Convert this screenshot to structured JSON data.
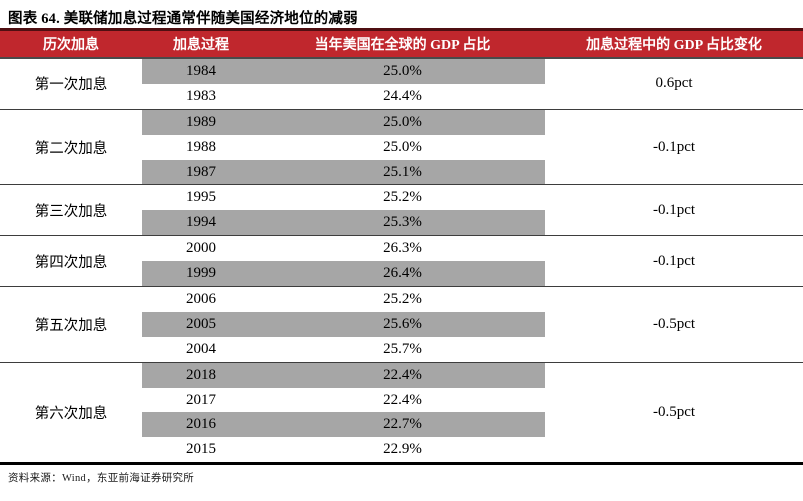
{
  "figure": {
    "title": "图表 64. 美联储加息过程通常伴随美国经济地位的减弱",
    "source_note": "资料来源：Wind，东亚前海证券研究所"
  },
  "colors": {
    "header_red": "#c0272d",
    "header_top_border": "#4f0f12",
    "row_highlight_gray": "#a6a6a6",
    "group_divider": "#3d3d3d",
    "table_bottom_border": "#000000"
  },
  "table": {
    "headers": [
      "历次加息",
      "加息过程",
      "当年美国在全球的 GDP 占比",
      "加息过程中的 GDP 占比变化"
    ],
    "groups": [
      {
        "label": "第一次加息",
        "change": "0.6pct",
        "rows": [
          {
            "year": "1984",
            "gdp": "25.0%",
            "shaded": true
          },
          {
            "year": "1983",
            "gdp": "24.4%",
            "shaded": false
          }
        ]
      },
      {
        "label": "第二次加息",
        "change": "-0.1pct",
        "rows": [
          {
            "year": "1989",
            "gdp": "25.0%",
            "shaded": true
          },
          {
            "year": "1988",
            "gdp": "25.0%",
            "shaded": false
          },
          {
            "year": "1987",
            "gdp": "25.1%",
            "shaded": true
          }
        ]
      },
      {
        "label": "第三次加息",
        "change": "-0.1pct",
        "rows": [
          {
            "year": "1995",
            "gdp": "25.2%",
            "shaded": false
          },
          {
            "year": "1994",
            "gdp": "25.3%",
            "shaded": true
          }
        ]
      },
      {
        "label": "第四次加息",
        "change": "-0.1pct",
        "rows": [
          {
            "year": "2000",
            "gdp": "26.3%",
            "shaded": false
          },
          {
            "year": "1999",
            "gdp": "26.4%",
            "shaded": true
          }
        ]
      },
      {
        "label": "第五次加息",
        "change": "-0.5pct",
        "rows": [
          {
            "year": "2006",
            "gdp": "25.2%",
            "shaded": false
          },
          {
            "year": "2005",
            "gdp": "25.6%",
            "shaded": true
          },
          {
            "year": "2004",
            "gdp": "25.7%",
            "shaded": false
          }
        ]
      },
      {
        "label": "第六次加息",
        "change": "-0.5pct",
        "rows": [
          {
            "year": "2018",
            "gdp": "22.4%",
            "shaded": true
          },
          {
            "year": "2017",
            "gdp": "22.4%",
            "shaded": false
          },
          {
            "year": "2016",
            "gdp": "22.7%",
            "shaded": true
          },
          {
            "year": "2015",
            "gdp": "22.9%",
            "shaded": false
          }
        ]
      }
    ]
  },
  "chart_data": {
    "type": "table",
    "title": "图表 64. 美联储加息过程通常伴随美国经济地位的减弱",
    "columns": [
      "历次加息",
      "加息过程",
      "当年美国在全球的 GDP 占比",
      "加息过程中的 GDP 占比变化"
    ],
    "rows": [
      [
        "第一次加息",
        1984,
        25.0,
        0.6
      ],
      [
        "第一次加息",
        1983,
        24.4,
        0.6
      ],
      [
        "第二次加息",
        1989,
        25.0,
        -0.1
      ],
      [
        "第二次加息",
        1988,
        25.0,
        -0.1
      ],
      [
        "第二次加息",
        1987,
        25.1,
        -0.1
      ],
      [
        "第三次加息",
        1995,
        25.2,
        -0.1
      ],
      [
        "第三次加息",
        1994,
        25.3,
        -0.1
      ],
      [
        "第四次加息",
        2000,
        26.3,
        -0.1
      ],
      [
        "第四次加息",
        1999,
        26.4,
        -0.1
      ],
      [
        "第五次加息",
        2006,
        25.2,
        -0.5
      ],
      [
        "第五次加息",
        2005,
        25.6,
        -0.5
      ],
      [
        "第五次加息",
        2004,
        25.7,
        -0.5
      ],
      [
        "第六次加息",
        2018,
        22.4,
        -0.5
      ],
      [
        "第六次加息",
        2017,
        22.4,
        -0.5
      ],
      [
        "第六次加息",
        2016,
        22.7,
        -0.5
      ],
      [
        "第六次加息",
        2015,
        22.9,
        -0.5
      ]
    ],
    "units": {
      "gdp_share": "%",
      "change": "pct"
    },
    "source": "Wind，东亚前海证券研究所"
  }
}
